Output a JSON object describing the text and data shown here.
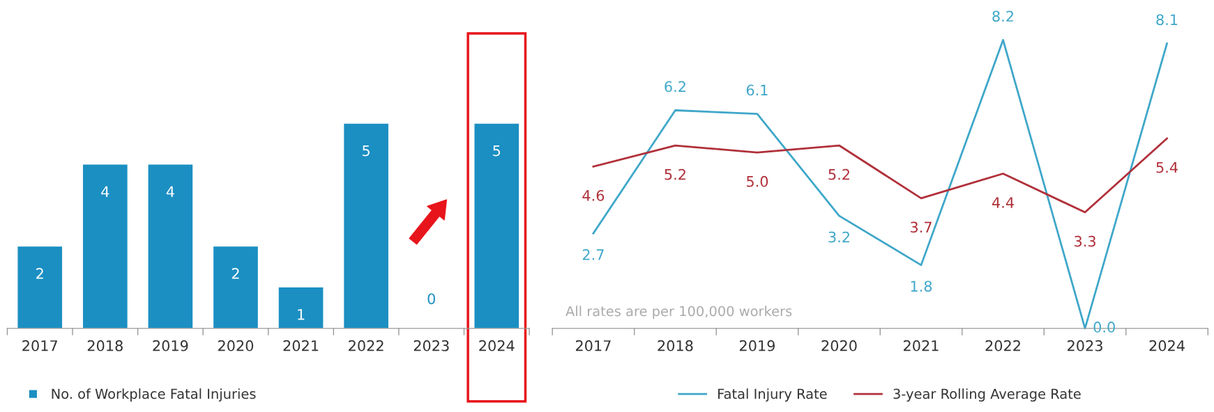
{
  "chart_data": [
    {
      "type": "bar",
      "categories": [
        "2017",
        "2018",
        "2019",
        "2020",
        "2021",
        "2022",
        "2023",
        "2024"
      ],
      "series": [
        {
          "name": "No. of Workplace Fatal Injuries",
          "color": "#1b8fc2",
          "values": [
            2,
            4,
            4,
            2,
            1,
            5,
            0,
            5
          ]
        }
      ],
      "data_labels": true,
      "legend": "bottom left",
      "grid": false
    },
    {
      "type": "line",
      "categories": [
        "2017",
        "2018",
        "2019",
        "2020",
        "2021",
        "2022",
        "2023",
        "2024"
      ],
      "series": [
        {
          "name": "Fatal Injury Rate",
          "color": "#3fa7c9",
          "values": [
            2.7,
            6.2,
            6.1,
            3.2,
            1.8,
            8.2,
            0.0,
            8.1
          ],
          "value_labels": [
            "2.7",
            "6.2",
            "6.1",
            "3.2",
            "1.8",
            "8.2",
            "0.0",
            "8.1"
          ]
        },
        {
          "name": "3-year Rolling Average Rate",
          "color": "#b0303a",
          "values": [
            4.6,
            5.2,
            5.0,
            5.2,
            3.7,
            4.4,
            3.3,
            5.4
          ],
          "value_labels": [
            "4.6",
            "5.2",
            "5.0",
            "5.2",
            "3.7",
            "4.4",
            "3.3",
            "5.4"
          ]
        }
      ],
      "legend": "bottom",
      "grid": false,
      "marker": "none",
      "line_style": "solid",
      "annotations": [
        "All rates are per 100,000 workers"
      ]
    }
  ]
}
